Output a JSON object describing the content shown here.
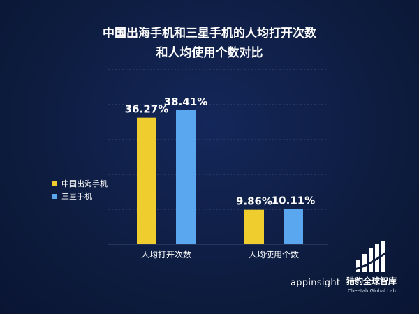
{
  "title": {
    "line1": "中国出海手机和三星手机的人均打开次数",
    "line2": "和人均使用个数对比"
  },
  "colors": {
    "series1": "#f0cd2e",
    "series2": "#5aa7f0",
    "grid": "#3b4c78"
  },
  "chart_data": {
    "type": "bar",
    "categories": [
      "人均打开次数",
      "人均使用个数"
    ],
    "series": [
      {
        "name": "中国出海手机",
        "values": [
          36.27,
          9.86
        ],
        "labels": [
          "36.27%",
          "9.86%"
        ]
      },
      {
        "name": "三星手机",
        "values": [
          38.41,
          10.11
        ],
        "labels": [
          "38.41%",
          "10.11%"
        ]
      }
    ],
    "ylim": [
      0,
      50
    ],
    "grid": true,
    "legend": "left"
  },
  "footer": {
    "app": "appinsight",
    "logo_cn": "猎豹全球智库",
    "logo_en": "Cheetah Global Lab"
  }
}
